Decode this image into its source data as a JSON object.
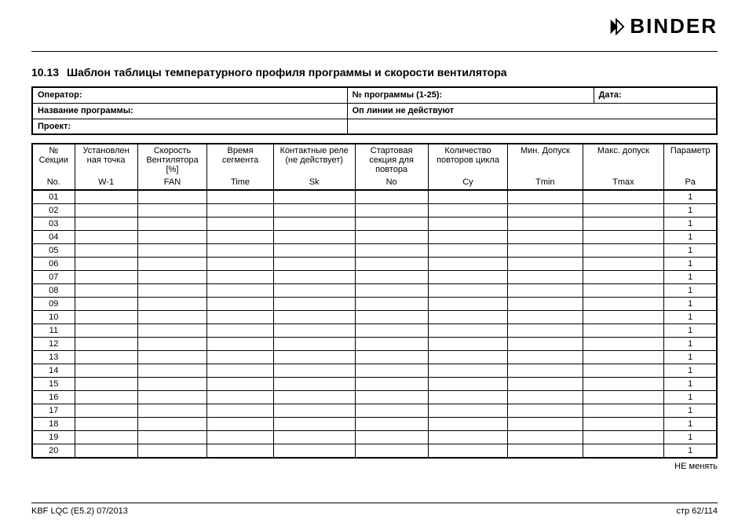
{
  "brand": {
    "text": "BINDER"
  },
  "section": {
    "number": "10.13",
    "title": "Шаблон таблицы температурного профиля программы и скорости вентилятора"
  },
  "meta": {
    "operator_label": "Оператор:",
    "program_no_label": "№ программы (1-25):",
    "date_label": "Дата:",
    "program_name_label": "Название программы:",
    "op_lines_label": "Оп линии не действуют",
    "project_label": "Проект:"
  },
  "columns": [
    {
      "h1": "№ Секции",
      "h2": "No.",
      "cls": "c-no"
    },
    {
      "h1": "Установлен ная точка",
      "h2": "W-1",
      "cls": "c-w1"
    },
    {
      "h1": "Скорость Вентилятора [%]",
      "h2": "FAN",
      "cls": "c-fan"
    },
    {
      "h1": "Время сегмента",
      "h2": "Time",
      "cls": "c-time"
    },
    {
      "h1": "Контактные реле (не действует)",
      "h2": "Sk",
      "cls": "c-sk"
    },
    {
      "h1": "Стартовая секция для повтора",
      "h2": "No",
      "cls": "c-rno"
    },
    {
      "h1": "Количество повторов цикла",
      "h2": "Cy",
      "cls": "c-cy"
    },
    {
      "h1": "Мин. Допуск",
      "h2": "Tmin",
      "cls": "c-tmin"
    },
    {
      "h1": "Макс. допуск",
      "h2": "Tmax",
      "cls": "c-tmax"
    },
    {
      "h1": "Параметр",
      "h2": "Pa",
      "cls": "c-pa"
    }
  ],
  "rows": [
    {
      "no": "01",
      "pa": "1"
    },
    {
      "no": "02",
      "pa": "1"
    },
    {
      "no": "03",
      "pa": "1"
    },
    {
      "no": "04",
      "pa": "1"
    },
    {
      "no": "05",
      "pa": "1"
    },
    {
      "no": "06",
      "pa": "1"
    },
    {
      "no": "07",
      "pa": "1"
    },
    {
      "no": "08",
      "pa": "1"
    },
    {
      "no": "09",
      "pa": "1"
    },
    {
      "no": "10",
      "pa": "1"
    },
    {
      "no": "11",
      "pa": "1"
    },
    {
      "no": "12",
      "pa": "1"
    },
    {
      "no": "13",
      "pa": "1"
    },
    {
      "no": "14",
      "pa": "1"
    },
    {
      "no": "15",
      "pa": "1"
    },
    {
      "no": "16",
      "pa": "1"
    },
    {
      "no": "17",
      "pa": "1"
    },
    {
      "no": "18",
      "pa": "1"
    },
    {
      "no": "19",
      "pa": "1"
    },
    {
      "no": "20",
      "pa": "1"
    }
  ],
  "note_right": "НЕ менять",
  "footer": {
    "left": "KBF LQC (E5.2) 07/2013",
    "right": "стр 62/114"
  },
  "colors": {
    "text": "#000000",
    "background": "#ffffff",
    "border": "#000000"
  }
}
